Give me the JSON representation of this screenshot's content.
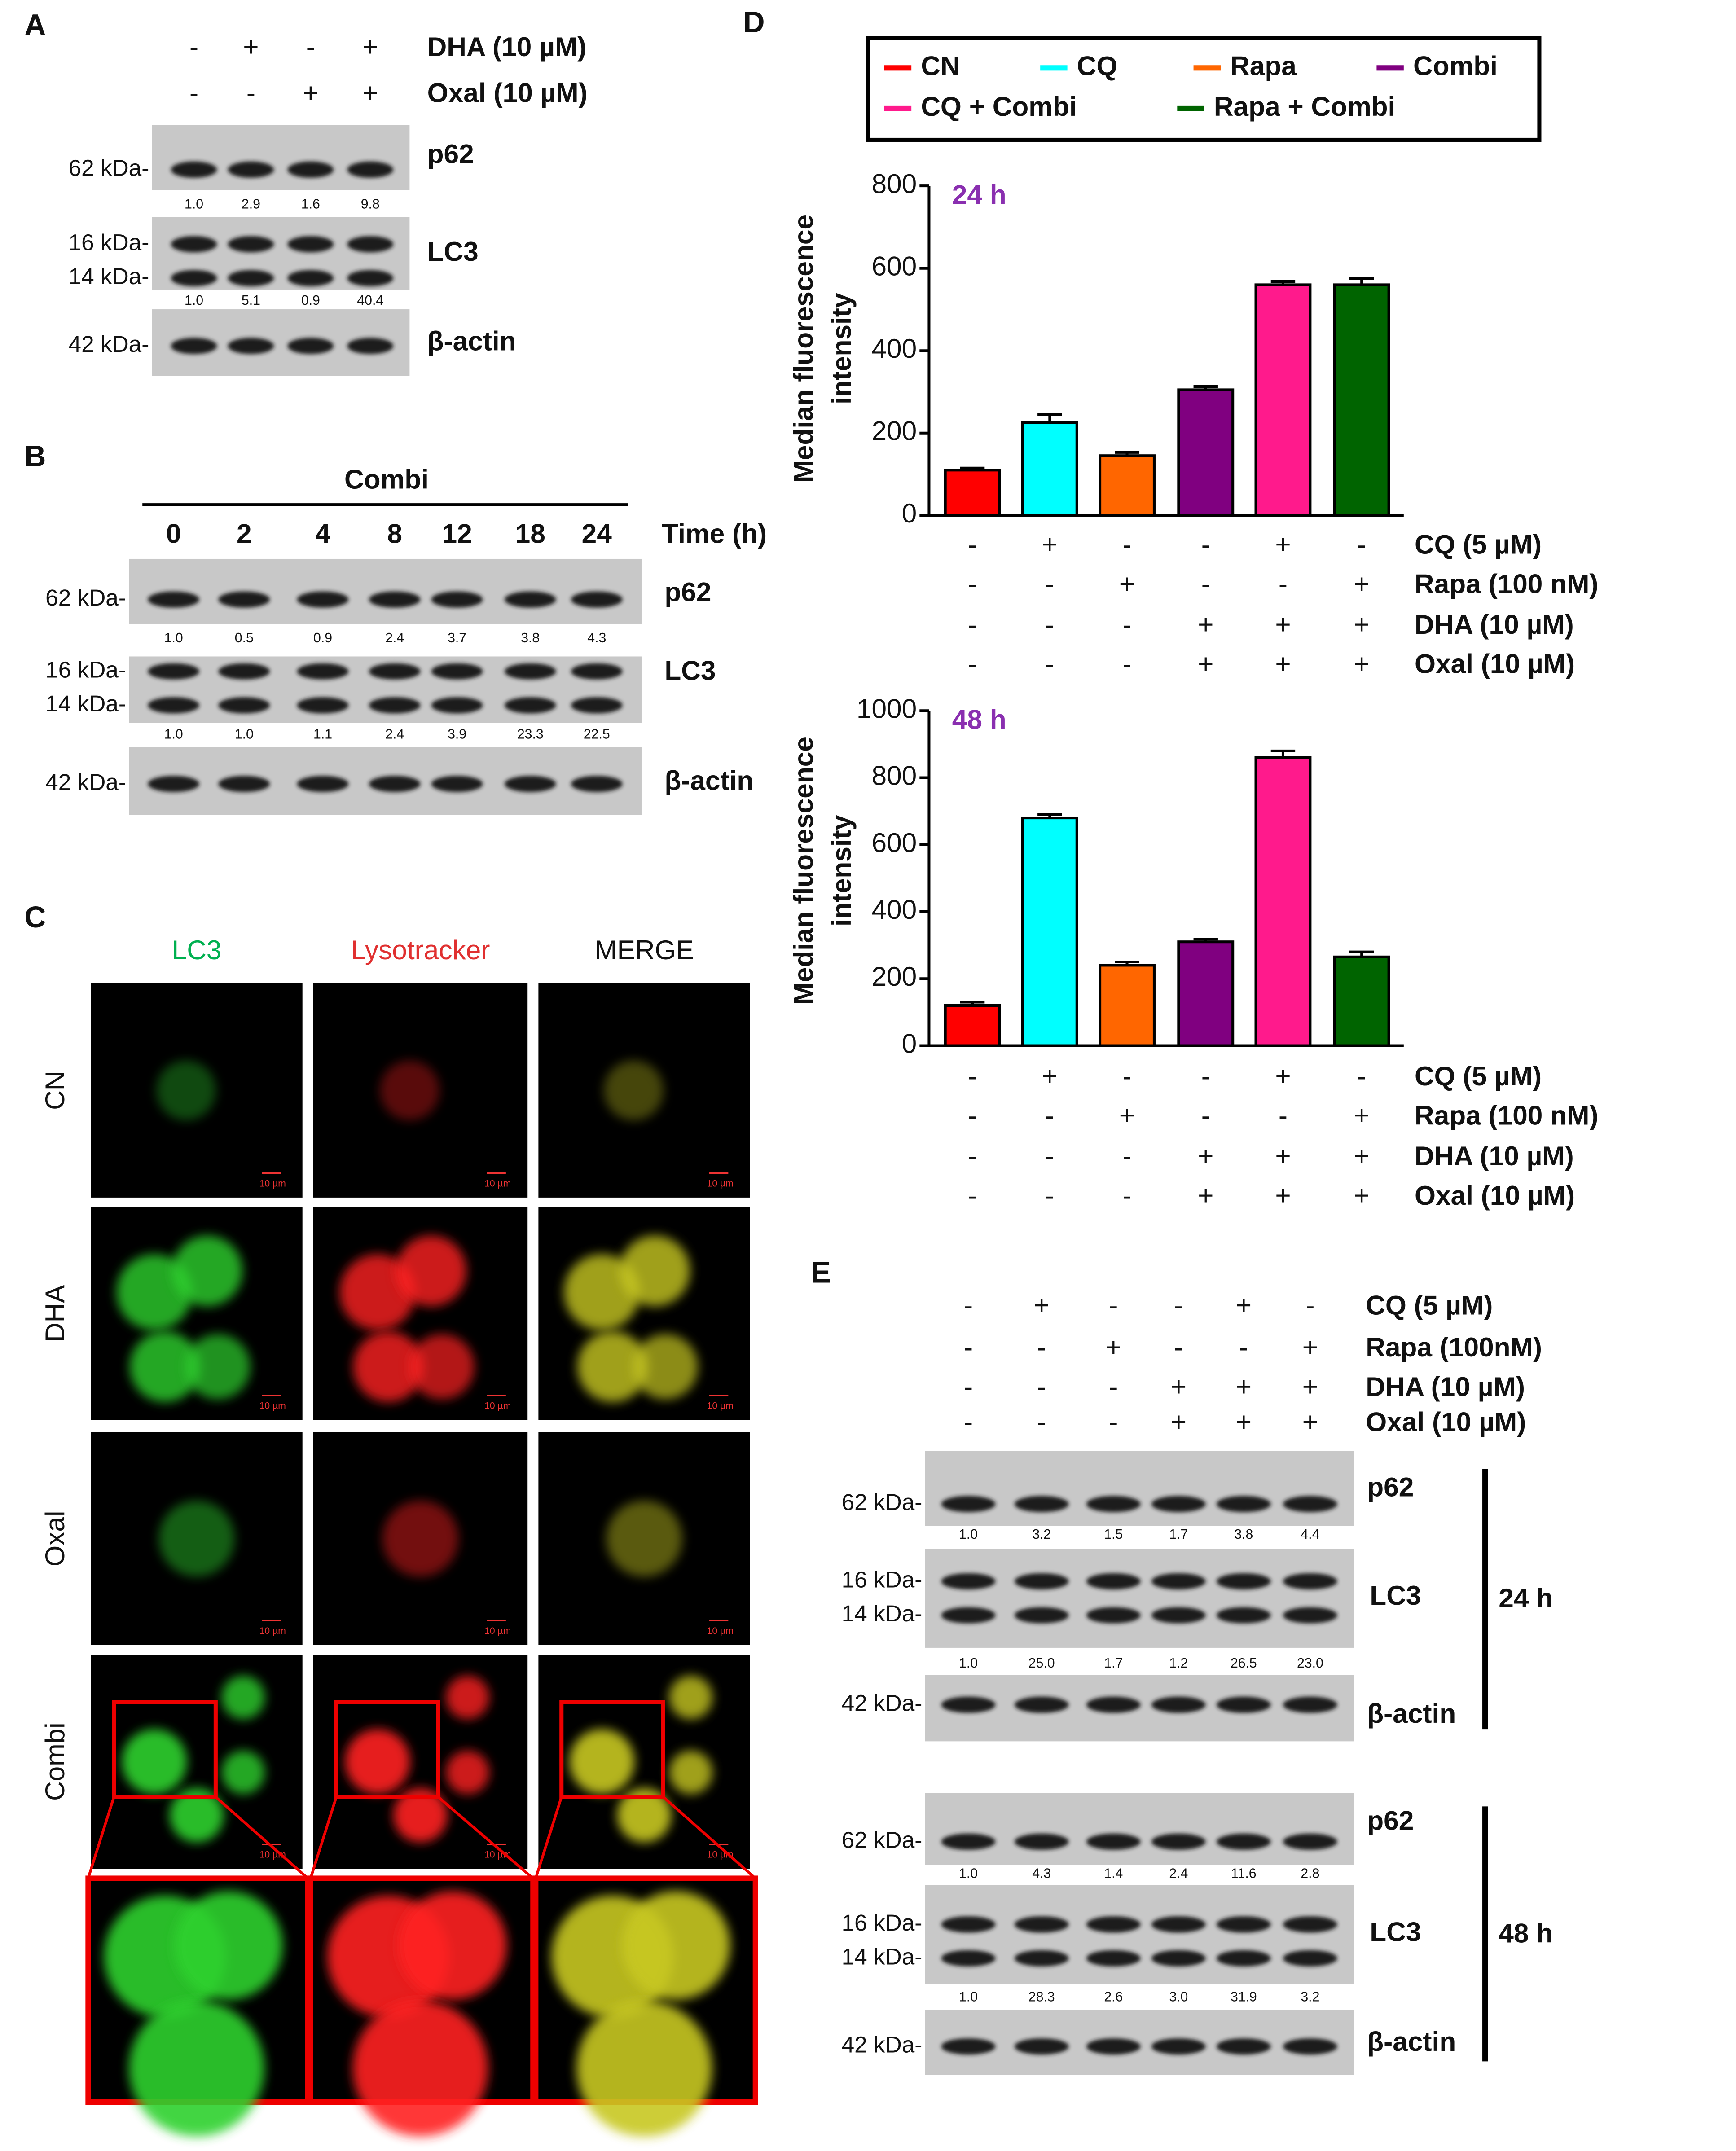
{
  "panel_labels": [
    "A",
    "B",
    "C",
    "D",
    "E"
  ],
  "panel_a": {
    "treatments": [
      {
        "name": "DHA (10 µM)",
        "signs": [
          "-",
          "+",
          "-",
          "+"
        ]
      },
      {
        "name": "Oxal (10 µM)",
        "signs": [
          "-",
          "-",
          "+",
          "+"
        ]
      }
    ],
    "blots": [
      {
        "name": "p62",
        "markers": [
          "62 kDa-"
        ],
        "quant": [
          "1.0",
          "2.9",
          "1.6",
          "9.8"
        ]
      },
      {
        "name": "LC3",
        "markers": [
          "16 kDa-",
          "14 kDa-"
        ],
        "quant": [
          "1.0",
          "5.1",
          "0.9",
          "40.4"
        ]
      },
      {
        "name": "β-actin",
        "markers": [
          "42 kDa-"
        ]
      }
    ]
  },
  "panel_b": {
    "title": "Combi",
    "times": [
      "0",
      "2",
      "4",
      "8",
      "12",
      "18",
      "24"
    ],
    "time_label": "Time (h)",
    "blots": [
      {
        "name": "p62",
        "markers": [
          "62 kDa-"
        ],
        "quant": [
          "1.0",
          "0.5",
          "0.9",
          "2.4",
          "3.7",
          "3.8",
          "4.3"
        ]
      },
      {
        "name": "LC3",
        "markers": [
          "16 kDa-",
          "14 kDa-"
        ],
        "quant": [
          "1.0",
          "1.0",
          "1.1",
          "2.4",
          "3.9",
          "23.3",
          "22.5"
        ]
      },
      {
        "name": "β-actin",
        "markers": [
          "42 kDa-"
        ]
      }
    ]
  },
  "panel_c": {
    "columns": [
      "LC3",
      "Lysotracker",
      "MERGE"
    ],
    "rows": [
      "CN",
      "DHA",
      "Oxal",
      "Combi"
    ],
    "scale_bar": "10 µm"
  },
  "panel_d": {
    "legend": [
      {
        "name": "CN",
        "color": "#ff0000"
      },
      {
        "name": "CQ",
        "color": "#00ffff"
      },
      {
        "name": "Rapa",
        "color": "#ff6600"
      },
      {
        "name": "Combi",
        "color": "#800080"
      },
      {
        "name": "CQ + Combi",
        "color": "#ff1a8c"
      },
      {
        "name": "Rapa + Combi",
        "color": "#006400"
      }
    ]
  },
  "chart_data": [
    {
      "type": "bar",
      "annotation": "24 h",
      "y_label": [
        "Median fluorescence",
        "intensity"
      ],
      "values": [
        110,
        225,
        145,
        305,
        560,
        560
      ],
      "errors": [
        5,
        20,
        8,
        8,
        8,
        15
      ],
      "ylim": [
        0,
        800
      ],
      "yticks": [
        0,
        200,
        400,
        600,
        800
      ],
      "treatments": [
        {
          "name": "CQ (5 µM)",
          "signs": [
            "-",
            "+",
            "-",
            "-",
            "+",
            "-"
          ]
        },
        {
          "name": "Rapa (100 nM)",
          "signs": [
            "-",
            "-",
            "+",
            "-",
            "-",
            "+"
          ]
        },
        {
          "name": "DHA (10 µM)",
          "signs": [
            "-",
            "-",
            "-",
            "+",
            "+",
            "+"
          ]
        },
        {
          "name": "Oxal (10 µM)",
          "signs": [
            "-",
            "-",
            "-",
            "+",
            "+",
            "+"
          ]
        }
      ]
    },
    {
      "type": "bar",
      "annotation": "48 h",
      "y_label": [
        "Median fluorescence",
        "intensity"
      ],
      "values": [
        120,
        680,
        240,
        310,
        860,
        265
      ],
      "errors": [
        10,
        10,
        10,
        8,
        20,
        15
      ],
      "ylim": [
        0,
        1000
      ],
      "yticks": [
        0,
        200,
        400,
        600,
        800,
        1000
      ],
      "treatments": [
        {
          "name": "CQ (5 µM)",
          "signs": [
            "-",
            "+",
            "-",
            "-",
            "+",
            "-"
          ]
        },
        {
          "name": "Rapa (100 nM)",
          "signs": [
            "-",
            "-",
            "+",
            "-",
            "-",
            "+"
          ]
        },
        {
          "name": "DHA (10 µM)",
          "signs": [
            "-",
            "-",
            "-",
            "+",
            "+",
            "+"
          ]
        },
        {
          "name": "Oxal (10 µM)",
          "signs": [
            "-",
            "-",
            "-",
            "+",
            "+",
            "+"
          ]
        }
      ]
    }
  ],
  "panel_e": {
    "treatments": [
      {
        "name": "CQ (5 µM)",
        "signs": [
          "-",
          "+",
          "-",
          "-",
          "+",
          "-"
        ]
      },
      {
        "name": "Rapa (100nM)",
        "signs": [
          "-",
          "-",
          "+",
          "-",
          "-",
          "+"
        ]
      },
      {
        "name": "DHA (10 µM)",
        "signs": [
          "-",
          "-",
          "-",
          "+",
          "+",
          "+"
        ]
      },
      {
        "name": "Oxal (10 µM)",
        "signs": [
          "-",
          "-",
          "-",
          "+",
          "+",
          "+"
        ]
      }
    ],
    "groups": [
      {
        "label": "24 h",
        "blots": [
          {
            "name": "p62",
            "markers": [
              "62 kDa-"
            ],
            "quant": [
              "1.0",
              "3.2",
              "1.5",
              "1.7",
              "3.8",
              "4.4"
            ]
          },
          {
            "name": "LC3",
            "markers": [
              "16 kDa-",
              "14 kDa-"
            ],
            "quant": [
              "1.0",
              "25.0",
              "1.7",
              "1.2",
              "26.5",
              "23.0"
            ]
          },
          {
            "name": "β-actin",
            "markers": [
              "42 kDa-"
            ]
          }
        ]
      },
      {
        "label": "48 h",
        "blots": [
          {
            "name": "p62",
            "markers": [
              "62 kDa-"
            ],
            "quant": [
              "1.0",
              "4.3",
              "1.4",
              "2.4",
              "11.6",
              "2.8"
            ]
          },
          {
            "name": "LC3",
            "markers": [
              "16 kDa-",
              "14 kDa-"
            ],
            "quant": [
              "1.0",
              "28.3",
              "2.6",
              "3.0",
              "31.9",
              "3.2"
            ]
          },
          {
            "name": "β-actin",
            "markers": [
              "42 kDa-"
            ]
          }
        ]
      }
    ]
  }
}
